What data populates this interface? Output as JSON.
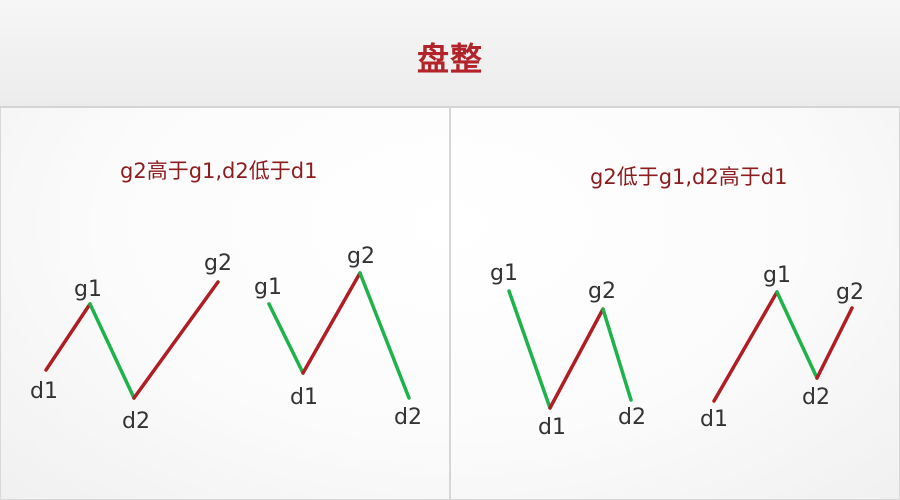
{
  "title": "盘整",
  "panels": [
    {
      "subtitle": "g2高于g1,d2低于d1",
      "patterns": [
        {
          "labels": [
            "d1",
            "g1",
            "d2",
            "g2"
          ]
        },
        {
          "labels": [
            "g1",
            "d1",
            "g2",
            "d2"
          ]
        }
      ]
    },
    {
      "subtitle": "g2低于g1,d2高于d1",
      "patterns": [
        {
          "labels": [
            "g1",
            "d1",
            "g2",
            "d2"
          ]
        },
        {
          "labels": [
            "d1",
            "g1",
            "d2",
            "g2"
          ]
        }
      ]
    }
  ],
  "colors": {
    "up_stroke": "#b01e23",
    "down_stroke": "#1db34a",
    "title": "#b3232a",
    "subtitle": "#8c1c1e"
  }
}
